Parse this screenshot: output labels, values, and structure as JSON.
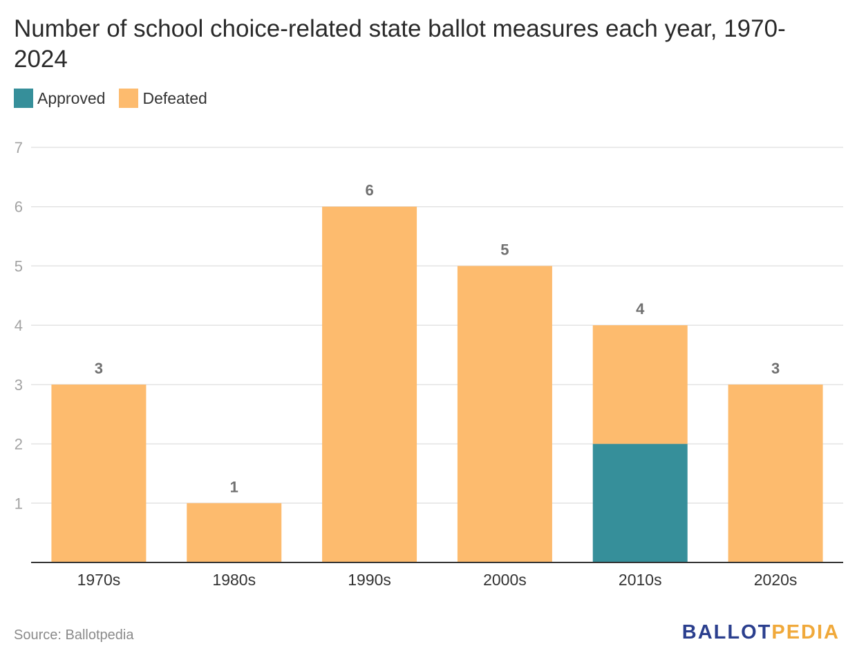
{
  "chart_data": {
    "type": "bar",
    "stacked": true,
    "title": "Number of school choice-related state ballot measures each year, 1970-2024",
    "categories": [
      "1970s",
      "1980s",
      "1990s",
      "2000s",
      "2010s",
      "2020s"
    ],
    "series": [
      {
        "name": "Approved",
        "color": "#368f9a",
        "values": [
          0,
          0,
          0,
          0,
          2,
          0
        ]
      },
      {
        "name": "Defeated",
        "color": "#fdbb6e",
        "values": [
          3,
          1,
          6,
          5,
          2,
          3
        ]
      }
    ],
    "totals": [
      3,
      1,
      6,
      5,
      4,
      3
    ],
    "ylim": [
      0,
      7
    ],
    "yticks": [
      1,
      2,
      3,
      4,
      5,
      6,
      7
    ],
    "xlabel": "",
    "ylabel": "",
    "grid": true,
    "legend_position": "top-left"
  },
  "source": "Source: Ballotpedia",
  "brand": {
    "part_a": "BALLOT",
    "part_b": "PEDIA"
  },
  "colors": {
    "grid": "#e3e3e3",
    "axis": "#333333"
  }
}
